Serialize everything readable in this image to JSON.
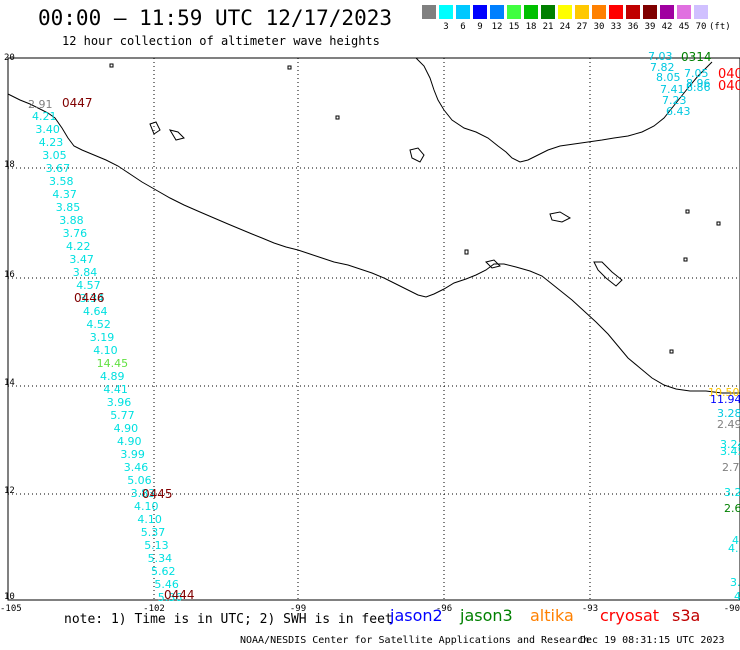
{
  "header": {
    "title": "00:00 – 11:59 UTC 12/17/2023",
    "subtitle": "12 hour collection of altimeter wave heights"
  },
  "color_scale": {
    "unit_label": "(ft)",
    "bins": [
      {
        "label": "",
        "color": "#808080"
      },
      {
        "label": "3",
        "color": "#00ffff"
      },
      {
        "label": "6",
        "color": "#00c8ff"
      },
      {
        "label": "9",
        "color": "#0000ff"
      },
      {
        "label": "12",
        "color": "#0080ff"
      },
      {
        "label": "15",
        "color": "#40ff40"
      },
      {
        "label": "18",
        "color": "#00c000"
      },
      {
        "label": "21",
        "color": "#008000"
      },
      {
        "label": "24",
        "color": "#ffff00"
      },
      {
        "label": "27",
        "color": "#ffc800"
      },
      {
        "label": "30",
        "color": "#ff8000"
      },
      {
        "label": "33",
        "color": "#ff0000"
      },
      {
        "label": "36",
        "color": "#c00000"
      },
      {
        "label": "39",
        "color": "#800000"
      },
      {
        "label": "42",
        "color": "#a000a0"
      },
      {
        "label": "45",
        "color": "#e070e0"
      },
      {
        "label": "70",
        "color": "#d0c0ff"
      }
    ]
  },
  "axes": {
    "lon_labels": [
      "-105",
      "-102",
      "-99",
      "-96",
      "-93",
      "-90"
    ],
    "lat_labels": [
      "20",
      "18",
      "16",
      "14",
      "12",
      "10"
    ]
  },
  "track1": {
    "color": "#00e0e0",
    "values": [
      "4.21",
      "3.40",
      "4.23",
      "3.05",
      "3.67",
      "3.58",
      "4.37",
      "3.85",
      "3.88",
      "3.76",
      "4.22",
      "3.47",
      "3.84",
      "4.57",
      "3.34",
      "4.64",
      "4.52",
      "3.19",
      "4.10",
      "14.45",
      "4.89",
      "4.41",
      "3.96",
      "5.77",
      "4.90",
      "4.90",
      "3.99",
      "3.46",
      "5.06",
      "3.83",
      "4.10",
      "4.10",
      "5.37",
      "5.13",
      "5.34",
      "5.62",
      "5.46",
      "5.36"
    ],
    "highlight": {
      "index": 19,
      "color": "#60e040"
    },
    "gray_value": "2.91",
    "gray_color": "#808080",
    "times": [
      "0447",
      "0446",
      "0445",
      "0444"
    ],
    "time_color": "#800000"
  },
  "track2": {
    "color": "#00c8e0",
    "values": [
      "7.03",
      "7.82",
      "8.05",
      "7.05",
      "7.41",
      "6.86",
      "8.96",
      "7.23",
      "6.43"
    ],
    "time": "0314",
    "time_color": "#008000",
    "edge_times": [
      "040",
      "040"
    ],
    "edge_color": "#ff0000"
  },
  "right_edge": {
    "items": [
      {
        "text": "10.50",
        "color": "#ffc800"
      },
      {
        "text": "11.94",
        "color": "#0000ff"
      },
      {
        "text": "3.28",
        "color": "#00c8e0"
      },
      {
        "text": "2.49",
        "color": "#808080"
      },
      {
        "text": "3.24",
        "color": "#00e0e0"
      },
      {
        "text": "3.45",
        "color": "#00e0e0"
      },
      {
        "text": "2.7",
        "color": "#808080"
      },
      {
        "text": "3.2",
        "color": "#00e0e0"
      },
      {
        "text": "2.6",
        "color": "#008000"
      },
      {
        "text": "4",
        "color": "#00e0e0"
      },
      {
        "text": "4.",
        "color": "#00e0e0"
      },
      {
        "text": "3.",
        "color": "#00e0e0"
      },
      {
        "text": "4",
        "color": "#00e0e0"
      }
    ]
  },
  "footer": {
    "note": "note: 1) Time is in UTC; 2) SWH is in feet",
    "satellites": [
      {
        "name": "jason2",
        "color": "#0000ff"
      },
      {
        "name": "jason3",
        "color": "#008000"
      },
      {
        "name": "altika",
        "color": "#ff8000"
      },
      {
        "name": "cryosat",
        "color": "#ff0000"
      },
      {
        "name": "s3a",
        "color": "#c00000"
      }
    ],
    "credit": "NOAA/NESDIS Center for Satellite Applications and Research",
    "timestamp": "Dec 19 08:31:15 UTC 2023"
  }
}
